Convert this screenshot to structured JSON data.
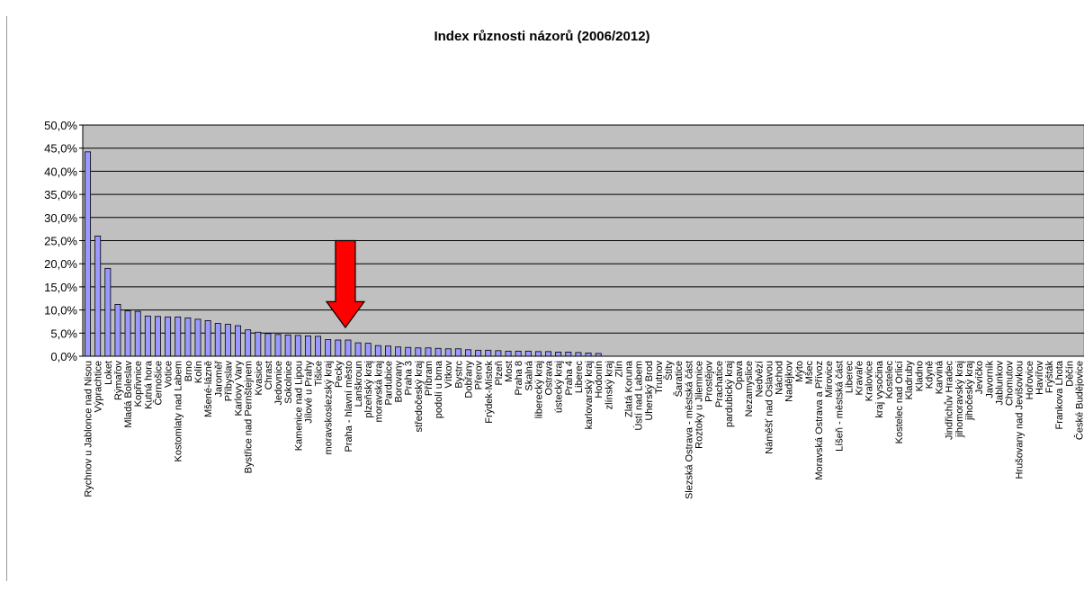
{
  "chart_data": {
    "type": "bar",
    "title": "Index různosti názorů (2006/2012)",
    "xlabel": "",
    "ylabel": "",
    "ylim": [
      0,
      50
    ],
    "y_ticks": [
      "0,0%",
      "5,0%",
      "10,0%",
      "15,0%",
      "20,0%",
      "25,0%",
      "30,0%",
      "35,0%",
      "40,0%",
      "45,0%",
      "50,0%"
    ],
    "grid": true,
    "plot_background": "#c0c0c0",
    "bar_color": "#9999ff",
    "annotation_arrow_color": "#ff0000",
    "annotation_arrow_category": "Praha - hlavní město",
    "categories": [
      "Rychnov u Jablonce nad Nisou",
      "Výprachtice",
      "Loket",
      "Rýmařov",
      "Mladá Boleslav",
      "Kopřivnice",
      "Kutná hora",
      "Černošice",
      "Votice",
      "Kostomlaty nad Labem",
      "Brno",
      "Kolín",
      "Mšené-lázně",
      "Jaroměř",
      "Příbyslav",
      "Karlovy Vary",
      "Bystřice nad Pernštejnem",
      "Kvasice",
      "Chrast",
      "Jedovnice",
      "Sokolnice",
      "Kamenice nad Lipou",
      "Jílové u Prahy",
      "Tišice",
      "moravskoslezský kraj",
      "Pecky",
      "Praha - hlavní město",
      "Lanškroun",
      "plzeňský kraj",
      "moravská kraj",
      "Pardubice",
      "Borovany",
      "Praha 3",
      "středočeský kraj",
      "Příbram",
      "podolí u brna",
      "Vítkov",
      "Bystrc",
      "Dobřany",
      "Přerov",
      "Frýdek-Místek",
      "Plzeň",
      "Most",
      "Praha 8",
      "Skalná",
      "liberecký kraj",
      "Ostrava",
      "ústecký kraj",
      "Praha 4",
      "Liberec",
      "karlovarský kraj",
      "Hodonín",
      "zlínský kraj",
      "Zlín",
      "Zlatá Koruna",
      "Ústí nad Labem",
      "Uherský Brod",
      "Trutnov",
      "Štíty",
      "Šaratice",
      "Slezská Ostrava - městská část",
      "Roztoky u Jilemnice",
      "Prostějov",
      "Prachatice",
      "pardubický kraj",
      "Opava",
      "Nezamyslice",
      "Nedvězí",
      "Náměšť nad Oslavou",
      "Náchod",
      "Nadějkov",
      "Mýto",
      "Mšec",
      "Moravská Ostrava a Přívoz",
      "Mirovice",
      "Líšeň - městská část",
      "Liberec",
      "Kravaře",
      "Kralovice",
      "kraj vysočina",
      "Kostelec",
      "Kostelec nad Orlicí",
      "Kladruby",
      "Kladno",
      "Kdyně",
      "Karviná",
      "Jindřichův Hradec",
      "jihomoravský kraj",
      "jihočeský kraj",
      "Jevíčko",
      "Javorník",
      "Jablunkov",
      "Chomutov",
      "Hrušovany nad Jevišovkou",
      "Hořovice",
      "Havířov",
      "Frýšták",
      "Frankova Lhota",
      "Děčín",
      "České Budějovice"
    ],
    "values": [
      44.2,
      26.0,
      19.0,
      11.2,
      9.8,
      9.7,
      8.7,
      8.6,
      8.5,
      8.5,
      8.3,
      8.0,
      7.7,
      7.1,
      6.9,
      6.6,
      5.7,
      5.2,
      4.9,
      4.7,
      4.6,
      4.5,
      4.4,
      4.3,
      3.6,
      3.5,
      3.5,
      2.9,
      2.8,
      2.3,
      2.2,
      2.0,
      1.9,
      1.8,
      1.8,
      1.7,
      1.6,
      1.6,
      1.4,
      1.3,
      1.3,
      1.2,
      1.1,
      1.1,
      1.1,
      1.0,
      1.0,
      0.9,
      0.9,
      0.8,
      0.7,
      0.6,
      0,
      0,
      0,
      0,
      0,
      0,
      0,
      0,
      0,
      0,
      0,
      0,
      0,
      0,
      0,
      0,
      0,
      0,
      0,
      0,
      0,
      0,
      0,
      0,
      0,
      0,
      0,
      0,
      0,
      0,
      0,
      0,
      0,
      0,
      0,
      0,
      0,
      0,
      0,
      0,
      0,
      0,
      0,
      0,
      0,
      0,
      0,
      0
    ]
  }
}
